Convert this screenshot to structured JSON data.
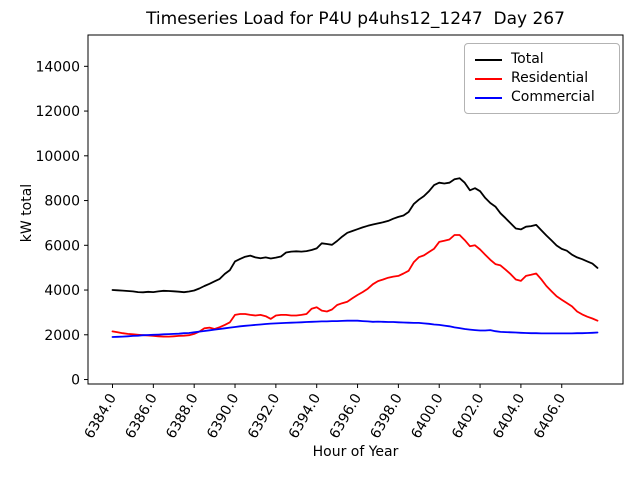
{
  "chart_data": {
    "type": "line",
    "title": "Timeseries Load for P4U p4uhs12_1247  Day 267",
    "xlabel": "Hour of Year",
    "ylabel": "kW total",
    "grid": false,
    "legend_position": "upper right",
    "xlim": [
      6382.8,
      6409.0
    ],
    "ylim": [
      -200,
      15400
    ],
    "xticks": [
      {
        "v": 6384,
        "label": "6384.0"
      },
      {
        "v": 6386,
        "label": "6386.0"
      },
      {
        "v": 6388,
        "label": "6388.0"
      },
      {
        "v": 6390,
        "label": "6390.0"
      },
      {
        "v": 6392,
        "label": "6392.0"
      },
      {
        "v": 6394,
        "label": "6394.0"
      },
      {
        "v": 6396,
        "label": "6396.0"
      },
      {
        "v": 6398,
        "label": "6398.0"
      },
      {
        "v": 6400,
        "label": "6400.0"
      },
      {
        "v": 6402,
        "label": "6402.0"
      },
      {
        "v": 6404,
        "label": "6404.0"
      },
      {
        "v": 6406,
        "label": "6406.0"
      }
    ],
    "yticks": [
      {
        "v": 0,
        "label": "0"
      },
      {
        "v": 2000,
        "label": "2000"
      },
      {
        "v": 4000,
        "label": "4000"
      },
      {
        "v": 6000,
        "label": "6000"
      },
      {
        "v": 8000,
        "label": "8000"
      },
      {
        "v": 10000,
        "label": "10000"
      },
      {
        "v": 12000,
        "label": "12000"
      },
      {
        "v": 14000,
        "label": "14000"
      }
    ],
    "x_start": 6384.0,
    "x_step": 0.25,
    "x_end": 6407.75,
    "series": [
      {
        "name": "Total",
        "color": "#000000",
        "values": [
          4000,
          3990,
          3975,
          3955,
          3940,
          3910,
          3900,
          3920,
          3910,
          3940,
          3965,
          3955,
          3945,
          3925,
          3905,
          3935,
          3980,
          4070,
          4180,
          4280,
          4390,
          4500,
          4720,
          4890,
          5280,
          5390,
          5490,
          5540,
          5460,
          5420,
          5460,
          5410,
          5450,
          5500,
          5680,
          5720,
          5730,
          5720,
          5740,
          5790,
          5860,
          6090,
          6060,
          6020,
          6190,
          6390,
          6560,
          6640,
          6720,
          6800,
          6870,
          6930,
          6980,
          7030,
          7090,
          7190,
          7270,
          7330,
          7490,
          7840,
          8040,
          8200,
          8420,
          8690,
          8800,
          8760,
          8800,
          8950,
          9000,
          8800,
          8460,
          8550,
          8420,
          8120,
          7890,
          7730,
          7430,
          7210,
          6980,
          6750,
          6710,
          6830,
          6860,
          6910,
          6670,
          6440,
          6220,
          5990,
          5840,
          5760,
          5580,
          5460,
          5380,
          5280,
          5180,
          4990
        ]
      },
      {
        "name": "Residential",
        "color": "#ff0000",
        "values": [
          2150,
          2110,
          2070,
          2040,
          2020,
          2000,
          1980,
          1970,
          1950,
          1930,
          1920,
          1920,
          1930,
          1950,
          1960,
          1980,
          2040,
          2140,
          2290,
          2320,
          2260,
          2340,
          2440,
          2560,
          2890,
          2930,
          2930,
          2890,
          2860,
          2890,
          2830,
          2710,
          2860,
          2890,
          2890,
          2860,
          2860,
          2890,
          2930,
          3160,
          3230,
          3080,
          3040,
          3130,
          3330,
          3410,
          3480,
          3630,
          3780,
          3910,
          4060,
          4260,
          4400,
          4470,
          4550,
          4600,
          4630,
          4740,
          4860,
          5240,
          5470,
          5550,
          5700,
          5850,
          6150,
          6200,
          6260,
          6460,
          6460,
          6230,
          5960,
          6000,
          5810,
          5580,
          5350,
          5160,
          5100,
          4910,
          4710,
          4470,
          4410,
          4630,
          4680,
          4740,
          4480,
          4180,
          3950,
          3720,
          3570,
          3420,
          3270,
          3040,
          2910,
          2810,
          2730,
          2630
        ]
      },
      {
        "name": "Commercial",
        "color": "#0000ff",
        "values": [
          1900,
          1910,
          1920,
          1930,
          1950,
          1960,
          1980,
          1990,
          2000,
          2010,
          2020,
          2030,
          2040,
          2050,
          2070,
          2080,
          2110,
          2140,
          2170,
          2200,
          2230,
          2260,
          2290,
          2320,
          2350,
          2380,
          2400,
          2420,
          2440,
          2460,
          2480,
          2500,
          2510,
          2520,
          2530,
          2540,
          2550,
          2560,
          2570,
          2580,
          2590,
          2600,
          2600,
          2610,
          2610,
          2620,
          2630,
          2630,
          2630,
          2610,
          2600,
          2580,
          2590,
          2580,
          2570,
          2570,
          2560,
          2550,
          2540,
          2530,
          2530,
          2510,
          2490,
          2460,
          2440,
          2410,
          2380,
          2330,
          2300,
          2260,
          2230,
          2210,
          2190,
          2190,
          2210,
          2160,
          2130,
          2120,
          2110,
          2100,
          2090,
          2080,
          2070,
          2070,
          2060,
          2060,
          2060,
          2060,
          2060,
          2060,
          2060,
          2070,
          2070,
          2080,
          2090,
          2100
        ]
      }
    ]
  }
}
